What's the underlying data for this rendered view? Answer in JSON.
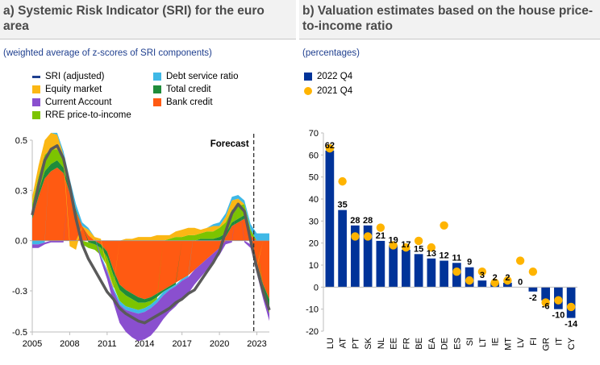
{
  "panel_a": {
    "title": "a) Systemic Risk Indicator (SRI) for the euro area",
    "subtitle": "(weighted average of z-scores of SRI components)",
    "legend": [
      {
        "label": "SRI (adjusted)",
        "color": "#1f3f8f",
        "kind": "line"
      },
      {
        "label": "Debt service ratio",
        "color": "#3fb8e6",
        "kind": "box"
      },
      {
        "label": "Equity market",
        "color": "#fbb714",
        "kind": "box"
      },
      {
        "label": "Total credit",
        "color": "#1f8c3a",
        "kind": "box"
      },
      {
        "label": "Current Account",
        "color": "#8a4fcf",
        "kind": "box"
      },
      {
        "label": "Bank credit",
        "color": "#ff5a12",
        "kind": "box"
      },
      {
        "label": "RRE price-to-income",
        "color": "#7cc400",
        "kind": "box"
      }
    ],
    "forecast_label": "Forecast"
  },
  "panel_b": {
    "title": "b) Valuation estimates based on the house price-to-income ratio",
    "subtitle": "(percentages)",
    "legend": [
      {
        "label": "2022 Q4",
        "color": "#003399",
        "kind": "box"
      },
      {
        "label": "2021 Q4",
        "color": "#ffb400",
        "kind": "dot"
      }
    ]
  },
  "chart_data": [
    {
      "type": "area",
      "title": "a) Systemic Risk Indicator (SRI) for the euro area",
      "xlabel": "",
      "ylabel": "",
      "ylim": [
        -0.5,
        0.55
      ],
      "xlim": [
        2005,
        2024
      ],
      "x_ticks": [
        "2005",
        "2008",
        "2011",
        "2014",
        "2017",
        "2020",
        "2023"
      ],
      "y_ticks": [
        "0.5",
        "0.3",
        "0.0",
        "-0.3",
        "-0.5"
      ],
      "y_tick_values": [
        0.55,
        0.275,
        0.0,
        -0.275,
        -0.5
      ],
      "forecast_start": 2022.75,
      "x": [
        2005.0,
        2005.5,
        2006.0,
        2006.5,
        2007.0,
        2007.5,
        2008.0,
        2008.5,
        2009.0,
        2009.5,
        2010.0,
        2010.5,
        2011.0,
        2011.5,
        2012.0,
        2012.5,
        2013.0,
        2013.5,
        2014.0,
        2014.5,
        2015.0,
        2015.5,
        2016.0,
        2016.5,
        2017.0,
        2017.5,
        2018.0,
        2018.5,
        2019.0,
        2019.5,
        2020.0,
        2020.5,
        2021.0,
        2021.5,
        2022.0,
        2022.5,
        2023.0,
        2023.5,
        2024.0
      ],
      "series": [
        {
          "name": "Bank credit",
          "color": "#ff5a12",
          "values": [
            0.12,
            0.24,
            0.34,
            0.38,
            0.4,
            0.37,
            0.26,
            0.16,
            0.08,
            0.03,
            0.0,
            -0.02,
            -0.06,
            -0.16,
            -0.24,
            -0.27,
            -0.29,
            -0.31,
            -0.32,
            -0.31,
            -0.29,
            -0.27,
            -0.25,
            -0.23,
            -0.21,
            -0.19,
            -0.16,
            -0.13,
            -0.1,
            -0.07,
            -0.04,
            0.02,
            0.08,
            0.1,
            0.12,
            0.03,
            -0.12,
            -0.24,
            -0.32
          ]
        },
        {
          "name": "Total credit",
          "color": "#1f8c3a",
          "values": [
            0.02,
            0.03,
            0.04,
            0.04,
            0.04,
            0.03,
            0.02,
            0.01,
            0.0,
            -0.01,
            -0.02,
            -0.02,
            -0.03,
            -0.03,
            -0.03,
            -0.03,
            -0.03,
            -0.03,
            -0.02,
            -0.02,
            -0.02,
            -0.01,
            -0.01,
            -0.01,
            0.0,
            0.0,
            0.0,
            0.01,
            0.01,
            0.01,
            0.02,
            0.02,
            0.02,
            0.02,
            0.02,
            0.0,
            -0.02,
            -0.03,
            -0.04
          ]
        },
        {
          "name": "RRE price-to-income",
          "color": "#7cc400",
          "values": [
            0.06,
            0.08,
            0.09,
            0.08,
            0.06,
            0.04,
            0.03,
            0.0,
            -0.02,
            -0.03,
            -0.03,
            -0.04,
            -0.05,
            -0.06,
            -0.06,
            -0.06,
            -0.05,
            -0.04,
            -0.03,
            -0.02,
            -0.01,
            0.0,
            0.01,
            0.02,
            0.02,
            0.03,
            0.03,
            0.03,
            0.04,
            0.04,
            0.05,
            0.06,
            0.07,
            0.07,
            0.06,
            0.03,
            0.0,
            -0.02,
            -0.04
          ]
        },
        {
          "name": "Equity market",
          "color": "#fbb714",
          "values": [
            0.04,
            0.06,
            0.08,
            0.09,
            0.08,
            0.03,
            -0.03,
            -0.05,
            0.0,
            0.03,
            0.02,
            0.01,
            -0.02,
            -0.01,
            0.0,
            0.01,
            0.01,
            0.02,
            0.02,
            0.02,
            0.03,
            0.03,
            0.02,
            0.03,
            0.04,
            0.04,
            0.04,
            0.02,
            0.02,
            0.03,
            0.01,
            0.03,
            0.05,
            0.04,
            0.0,
            -0.02,
            -0.01,
            0.0,
            0.0
          ]
        },
        {
          "name": "Debt service ratio",
          "color": "#3fb8e6",
          "values": [
            -0.02,
            -0.02,
            -0.01,
            0.0,
            0.01,
            0.02,
            0.03,
            0.03,
            0.02,
            0.01,
            0.0,
            -0.01,
            -0.01,
            -0.01,
            -0.02,
            -0.02,
            -0.02,
            -0.02,
            -0.02,
            -0.02,
            -0.02,
            -0.02,
            -0.01,
            -0.01,
            -0.01,
            -0.01,
            0.0,
            0.0,
            0.0,
            0.01,
            0.02,
            0.02,
            0.02,
            0.02,
            0.02,
            0.03,
            0.04,
            0.04,
            0.04
          ]
        },
        {
          "name": "Current Account",
          "color": "#8a4fcf",
          "values": [
            -0.02,
            -0.02,
            -0.01,
            -0.01,
            -0.01,
            -0.01,
            0.0,
            0.0,
            0.0,
            0.0,
            0.0,
            -0.02,
            -0.04,
            -0.07,
            -0.1,
            -0.12,
            -0.14,
            -0.15,
            -0.15,
            -0.15,
            -0.14,
            -0.13,
            -0.12,
            -0.11,
            -0.1,
            -0.09,
            -0.08,
            -0.07,
            -0.06,
            -0.05,
            -0.04,
            -0.02,
            -0.01,
            0.0,
            -0.01,
            -0.02,
            -0.03,
            -0.03,
            -0.04
          ]
        }
      ],
      "sri_line": {
        "name": "SRI (adjusted)",
        "color": "#5a5a5a",
        "values": [
          0.14,
          0.3,
          0.44,
          0.5,
          0.52,
          0.45,
          0.3,
          0.12,
          -0.02,
          -0.1,
          -0.16,
          -0.22,
          -0.28,
          -0.32,
          -0.37,
          -0.4,
          -0.42,
          -0.44,
          -0.45,
          -0.43,
          -0.41,
          -0.39,
          -0.37,
          -0.34,
          -0.32,
          -0.29,
          -0.27,
          -0.22,
          -0.17,
          -0.12,
          -0.06,
          0.05,
          0.15,
          0.2,
          0.16,
          0.0,
          -0.15,
          -0.28,
          -0.38
        ]
      }
    },
    {
      "type": "bar",
      "title": "b) Valuation estimates based on the house price-to-income ratio",
      "xlabel": "",
      "ylabel": "",
      "ylim": [
        -20,
        70
      ],
      "y_ticks": [
        70,
        60,
        50,
        40,
        30,
        20,
        10,
        0,
        -10,
        -20
      ],
      "categories": [
        "LU",
        "AT",
        "PT",
        "SK",
        "NL",
        "EE",
        "FR",
        "BE",
        "EA",
        "DE",
        "ES",
        "SI",
        "LT",
        "IE",
        "MT",
        "LV",
        "FI",
        "GR",
        "IT",
        "CY"
      ],
      "series": [
        {
          "name": "2022 Q4",
          "color": "#003399",
          "values": [
            62,
            35,
            28,
            28,
            21,
            19,
            17,
            15,
            13,
            12,
            11,
            9,
            3,
            2,
            2,
            0,
            -2,
            -6,
            -10,
            -14
          ]
        },
        {
          "name": "2021 Q4",
          "color": "#ffb400",
          "values": [
            63,
            48,
            23,
            23,
            27,
            19,
            18,
            21,
            18,
            28,
            7,
            3,
            7,
            2,
            3,
            12,
            7,
            -7,
            -6,
            -9
          ]
        }
      ],
      "bar_labels": [
        "62",
        "35",
        "28",
        "28",
        "21",
        "19",
        "17",
        "15",
        "13",
        "12",
        "11",
        "9",
        "3",
        "2",
        "2",
        "0",
        "-2",
        "-6",
        "-10",
        "-14"
      ]
    }
  ]
}
